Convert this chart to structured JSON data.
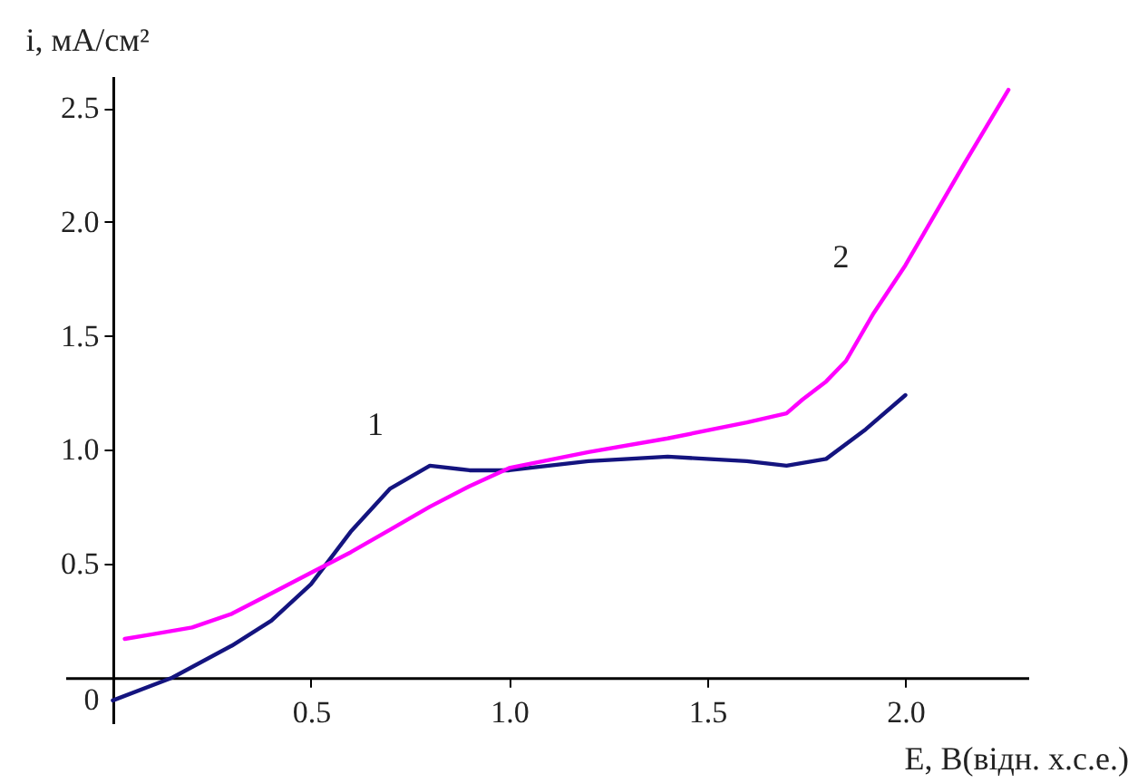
{
  "chart_data": {
    "type": "line",
    "xlabel": "E, B(відн. х.с.е.)",
    "ylabel": "i, мА/см²",
    "xlim": [
      -0.12,
      2.31
    ],
    "ylim": [
      -0.2,
      2.64
    ],
    "xticks": [
      0.5,
      {
        "value": 1,
        "label": "1.0"
      },
      1.5,
      {
        "value": 2,
        "label": "2.0"
      }
    ],
    "yticks": [
      {
        "value": 0,
        "label": "0"
      },
      0.5,
      {
        "value": 1,
        "label": "1.0"
      },
      1.5,
      {
        "value": 2,
        "label": "2.0"
      },
      2.5
    ],
    "grid": false,
    "legend": false,
    "marker": "none",
    "line_style": "solid",
    "series": [
      {
        "name": "1",
        "color": "#14147f",
        "x": [
          0,
          0.15,
          0.3,
          0.4,
          0.5,
          0.6,
          0.7,
          0.8,
          0.9,
          1.0,
          1.2,
          1.4,
          1.6,
          1.7,
          1.8,
          1.9,
          2.0
        ],
        "values": [
          -0.1,
          0,
          0.14,
          0.25,
          0.41,
          0.64,
          0.83,
          0.93,
          0.91,
          0.91,
          0.95,
          0.97,
          0.95,
          0.93,
          0.96,
          1.09,
          1.24
        ]
      },
      {
        "name": "2",
        "color": "#ff00ff",
        "x": [
          0.03,
          0.1,
          0.2,
          0.3,
          0.4,
          0.5,
          0.6,
          0.7,
          0.8,
          0.9,
          1.0,
          1.2,
          1.4,
          1.6,
          1.7,
          1.74,
          1.8,
          1.85,
          1.92,
          2.0,
          2.15,
          2.26
        ],
        "values": [
          0.17,
          0.19,
          0.22,
          0.28,
          0.37,
          0.46,
          0.55,
          0.65,
          0.75,
          0.84,
          0.92,
          0.99,
          1.05,
          1.12,
          1.16,
          1.22,
          1.3,
          1.39,
          1.6,
          1.81,
          2.26,
          2.58
        ]
      }
    ]
  }
}
